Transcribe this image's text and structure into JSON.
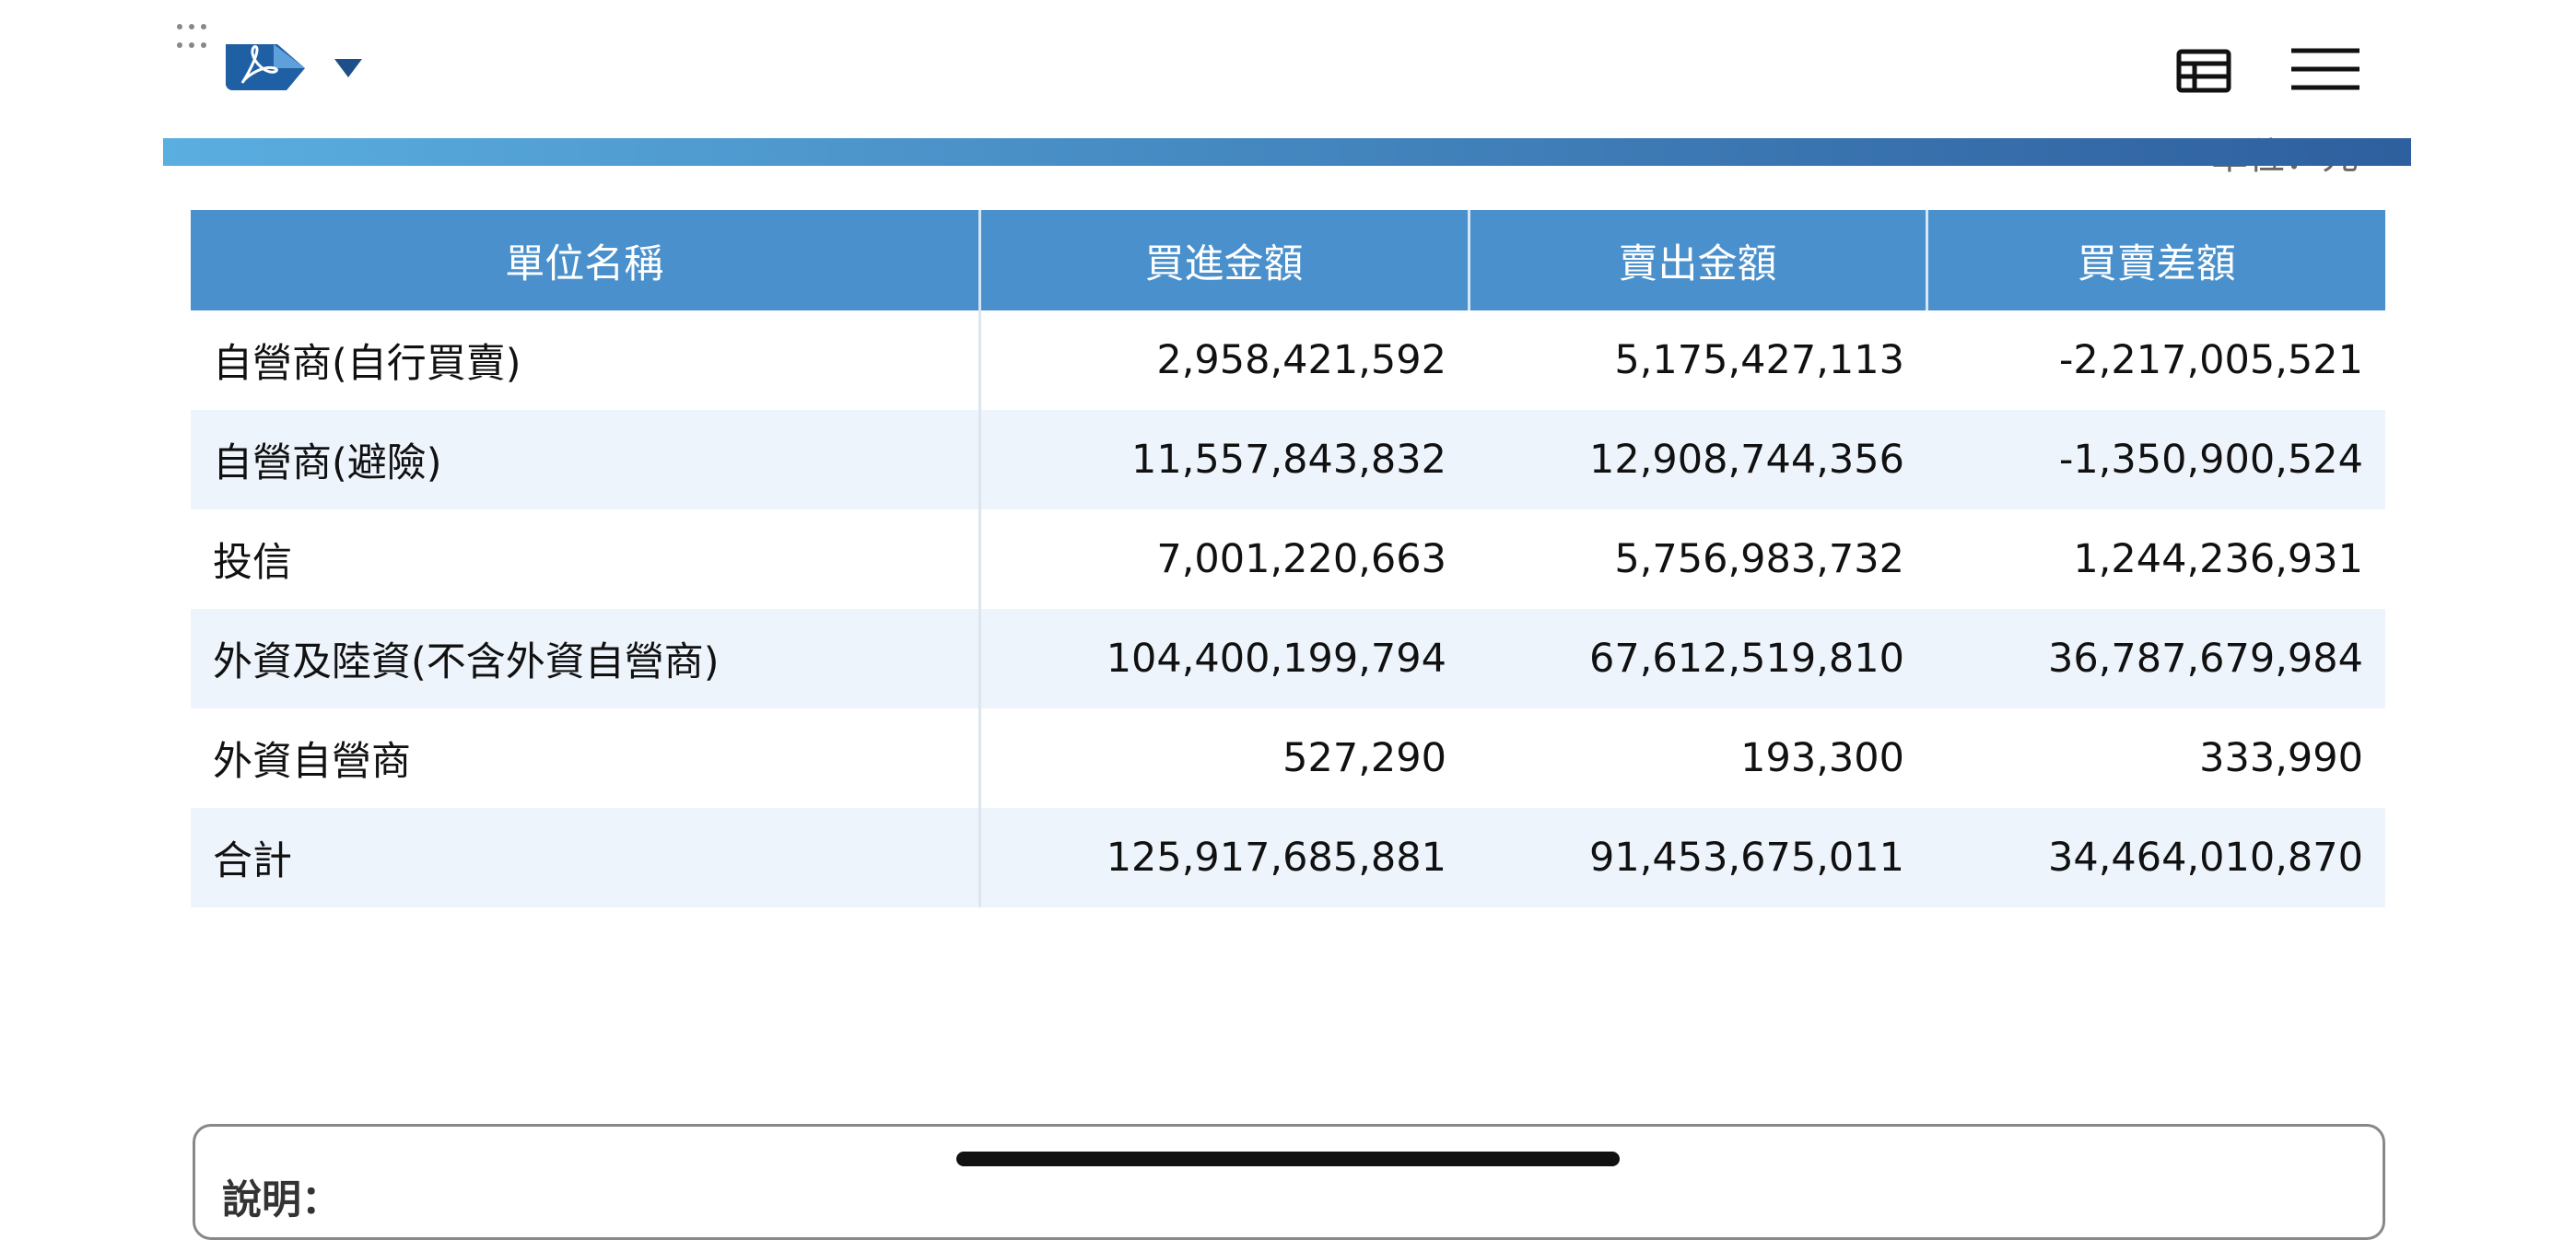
{
  "unit": "單位：元",
  "table": {
    "headers": [
      "單位名稱",
      "買進金額",
      "賣出金額",
      "買賣差額"
    ],
    "rows": [
      [
        "自營商(自行買賣)",
        "2,958,421,592",
        "5,175,427,113",
        "-2,217,005,521"
      ],
      [
        "自營商(避險)",
        "11,557,843,832",
        "12,908,744,356",
        "-1,350,900,524"
      ],
      [
        "投信",
        "7,001,220,663",
        "5,756,983,732",
        "1,244,236,931"
      ],
      [
        "外資及陸資(不含外資自營商)",
        "104,400,199,794",
        "67,612,519,810",
        "36,787,679,984"
      ],
      [
        "外資自營商",
        "527,290",
        "193,300",
        "333,990"
      ],
      [
        "合計",
        "125,917,685,881",
        "91,453,675,011",
        "34,464,010,870"
      ]
    ]
  },
  "note": {
    "label": "說明："
  }
}
